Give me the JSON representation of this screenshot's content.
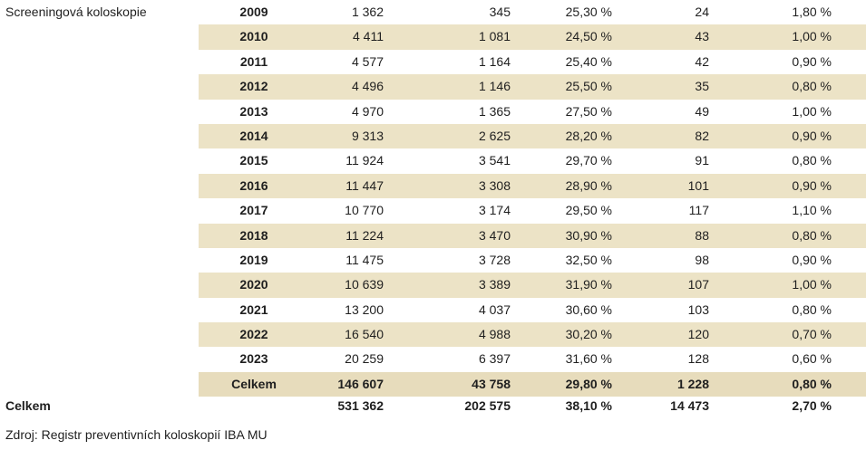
{
  "group_label": "Screeningová koloskopie",
  "rows": [
    {
      "year": "2009",
      "c1": "1 362",
      "c2": "345",
      "c3": "25,30 %",
      "c4": "24",
      "c5": "1,80 %"
    },
    {
      "year": "2010",
      "c1": "4 411",
      "c2": "1 081",
      "c3": "24,50 %",
      "c4": "43",
      "c5": "1,00 %"
    },
    {
      "year": "2011",
      "c1": "4 577",
      "c2": "1 164",
      "c3": "25,40 %",
      "c4": "42",
      "c5": "0,90 %"
    },
    {
      "year": "2012",
      "c1": "4 496",
      "c2": "1 146",
      "c3": "25,50 %",
      "c4": "35",
      "c5": "0,80 %"
    },
    {
      "year": "2013",
      "c1": "4 970",
      "c2": "1 365",
      "c3": "27,50 %",
      "c4": "49",
      "c5": "1,00 %"
    },
    {
      "year": "2014",
      "c1": "9 313",
      "c2": "2 625",
      "c3": "28,20 %",
      "c4": "82",
      "c5": "0,90 %"
    },
    {
      "year": "2015",
      "c1": "11 924",
      "c2": "3 541",
      "c3": "29,70 %",
      "c4": "91",
      "c5": "0,80 %"
    },
    {
      "year": "2016",
      "c1": "11 447",
      "c2": "3 308",
      "c3": "28,90 %",
      "c4": "101",
      "c5": "0,90 %"
    },
    {
      "year": "2017",
      "c1": "10 770",
      "c2": "3 174",
      "c3": "29,50 %",
      "c4": "117",
      "c5": "1,10 %"
    },
    {
      "year": "2018",
      "c1": "11 224",
      "c2": "3 470",
      "c3": "30,90 %",
      "c4": "88",
      "c5": "0,80 %"
    },
    {
      "year": "2019",
      "c1": "11 475",
      "c2": "3 728",
      "c3": "32,50 %",
      "c4": "98",
      "c5": "0,90 %"
    },
    {
      "year": "2020",
      "c1": "10 639",
      "c2": "3 389",
      "c3": "31,90 %",
      "c4": "107",
      "c5": "1,00 %"
    },
    {
      "year": "2021",
      "c1": "13 200",
      "c2": "4 037",
      "c3": "30,60 %",
      "c4": "103",
      "c5": "0,80 %"
    },
    {
      "year": "2022",
      "c1": "16 540",
      "c2": "4 988",
      "c3": "30,20 %",
      "c4": "120",
      "c5": "0,70 %"
    },
    {
      "year": "2023",
      "c1": "20 259",
      "c2": "6 397",
      "c3": "31,60 %",
      "c4": "128",
      "c5": "0,60 %"
    }
  ],
  "subtotal": {
    "label": "Celkem",
    "c1": "146 607",
    "c2": "43 758",
    "c3": "29,80 %",
    "c4": "1 228",
    "c5": "0,80 %"
  },
  "grand_total": {
    "label": "Celkem",
    "c1": "531 362",
    "c2": "202 575",
    "c3": "38,10 %",
    "c4": "14 473",
    "c5": "2,70 %"
  },
  "source": "Zdroj: Registr preventivních koloskopií IBA MU",
  "colors": {
    "shade": "#ece3c6",
    "text": "#1f1f1f"
  }
}
